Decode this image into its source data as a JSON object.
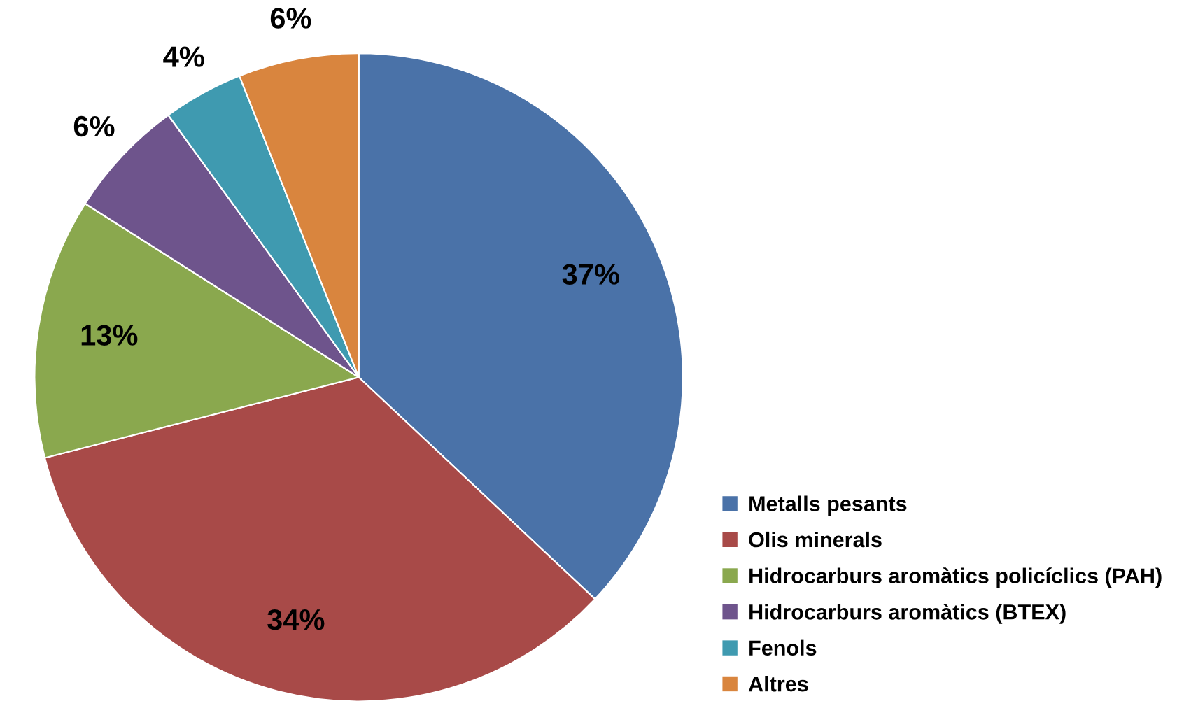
{
  "chart_data": {
    "type": "pie",
    "categories": [
      "Metalls pesants",
      "Olis minerals",
      "Hidrocarburs aromàtics policíclics (PAH)",
      "Hidrocarburs aromàtics (BTEX)",
      "Fenols",
      "Altres"
    ],
    "values": [
      37,
      34,
      13,
      6,
      4,
      6
    ],
    "colors": [
      "#4a72a8",
      "#a84a48",
      "#8aa84e",
      "#6e548c",
      "#3f9ab0",
      "#d9853e"
    ],
    "value_labels": [
      "37%",
      "34%",
      "13%",
      "6%",
      "4%",
      "6%"
    ],
    "legend": "bottom right"
  }
}
